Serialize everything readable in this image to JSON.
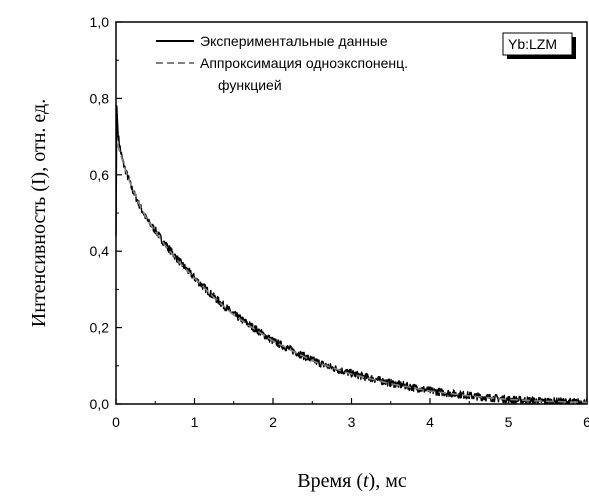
{
  "chart_data": {
    "type": "line",
    "title": "",
    "xlabel": "Время (t), мс",
    "xlabel_parts": [
      "Время (",
      "t",
      "), мс"
    ],
    "ylabel": "Интенсивность (I), отн. ед.",
    "xlim": [
      0,
      6
    ],
    "ylim": [
      0,
      1.0
    ],
    "x_ticks": [
      0,
      1,
      2,
      3,
      4,
      5,
      6
    ],
    "x_tick_labels": [
      "0",
      "1",
      "2",
      "3",
      "4",
      "5",
      "6"
    ],
    "y_ticks": [
      0.0,
      0.2,
      0.4,
      0.6,
      0.8,
      1.0
    ],
    "y_tick_labels": [
      "0,0",
      "0,2",
      "0,4",
      "0,6",
      "0,8",
      "1,0"
    ],
    "grid": false,
    "legend_position": "top-left",
    "badge": "Yb:LZM",
    "series": [
      {
        "name": "Экспериментальные данные",
        "style": "solid",
        "color": "#000000",
        "x": [
          0,
          0.01,
          0.03,
          0.06,
          0.1,
          0.15,
          0.2,
          0.3,
          0.4,
          0.5,
          0.6,
          0.8,
          1.0,
          1.25,
          1.5,
          1.75,
          2.0,
          2.25,
          2.5,
          2.75,
          3.0,
          3.5,
          4.0,
          4.5,
          5.0,
          5.5,
          6.0
        ],
        "y": [
          0.44,
          0.78,
          0.7,
          0.66,
          0.625,
          0.595,
          0.565,
          0.52,
          0.48,
          0.455,
          0.425,
          0.375,
          0.33,
          0.28,
          0.235,
          0.2,
          0.165,
          0.14,
          0.115,
          0.095,
          0.08,
          0.055,
          0.035,
          0.022,
          0.012,
          0.007,
          0.004
        ]
      },
      {
        "name": "Аппроксимация одноэкспоненц. функцией",
        "name_lines": [
          "Аппроксимация одноэкспоненц.",
          "функцией"
        ],
        "style": "dashed",
        "color": "#808080",
        "x": [
          0.02,
          0.1,
          0.2,
          0.3,
          0.4,
          0.5,
          0.6,
          0.8,
          1.0,
          1.25,
          1.5,
          1.75,
          2.0,
          2.5,
          3.0,
          3.5,
          4.0,
          4.5,
          5.0,
          5.5,
          6.0
        ],
        "y": [
          0.68,
          0.625,
          0.568,
          0.522,
          0.482,
          0.452,
          0.422,
          0.372,
          0.33,
          0.278,
          0.233,
          0.198,
          0.165,
          0.113,
          0.078,
          0.053,
          0.034,
          0.021,
          0.012,
          0.007,
          0.004
        ]
      }
    ]
  }
}
